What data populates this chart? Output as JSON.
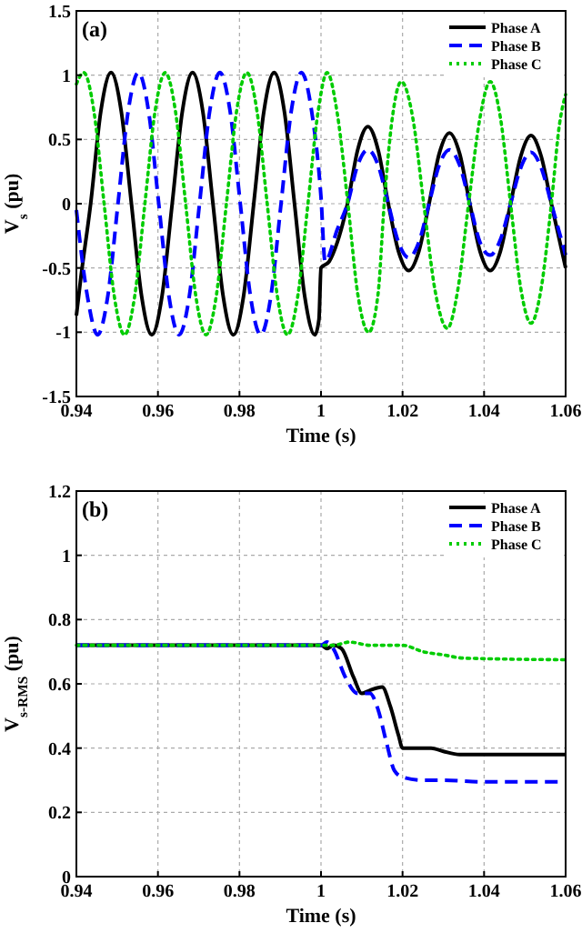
{
  "chart_data": [
    {
      "type": "line",
      "xlabel": "Time (s)",
      "ylabel": "V$_{s}$ (pu)",
      "annotations": [
        "(a)"
      ],
      "xlim": [
        0.94,
        1.06
      ],
      "ylim": [
        -1.5,
        1.5
      ],
      "xticks": [
        0.94,
        0.96,
        0.98,
        1,
        1.02,
        1.04,
        1.06
      ],
      "yticks": [
        -1.5,
        -1,
        -0.5,
        0,
        0.5,
        1,
        1.5
      ],
      "grid": true,
      "legend": "top right",
      "series": [
        {
          "name": "Phase A",
          "color": "#000000",
          "line_style": "solid",
          "x": [
            0.94,
            0.941,
            0.9435,
            0.946,
            0.9485,
            0.951,
            0.9535,
            0.956,
            0.9585,
            0.961,
            0.9635,
            0.966,
            0.9685,
            0.971,
            0.9735,
            0.976,
            0.9785,
            0.981,
            0.9835,
            0.986,
            0.9885,
            0.991,
            0.9935,
            0.996,
            0.9985,
            0.9995,
            1.0,
            1.002,
            1.004,
            1.0065,
            1.009,
            1.0115,
            1.014,
            1.0165,
            1.019,
            1.0215,
            1.024,
            1.0265,
            1.029,
            1.0315,
            1.034,
            1.0365,
            1.039,
            1.0415,
            1.044,
            1.0465,
            1.049,
            1.0515,
            1.054,
            1.0565,
            1.06
          ],
          "values": [
            -0.87,
            -0.6,
            0,
            0.72,
            1.02,
            0.72,
            0,
            -0.72,
            -1.02,
            -0.72,
            0,
            0.72,
            1.02,
            0.72,
            0,
            -0.72,
            -1.02,
            -0.72,
            0,
            0.72,
            1.02,
            0.72,
            0,
            -0.72,
            -1.02,
            -0.9,
            -0.5,
            -0.45,
            -0.3,
            0,
            0.42,
            0.6,
            0.42,
            0,
            -0.37,
            -0.52,
            -0.37,
            0,
            0.39,
            0.55,
            0.39,
            0,
            -0.37,
            -0.52,
            -0.37,
            0,
            0.37,
            0.53,
            0.37,
            0,
            -0.5
          ]
        },
        {
          "name": "Phase B",
          "color": "#0000ff",
          "line_style": "dashed",
          "x": [
            0.94,
            0.9427,
            0.9452,
            0.9477,
            0.9502,
            0.9527,
            0.9552,
            0.9577,
            0.9602,
            0.9627,
            0.9652,
            0.9677,
            0.9702,
            0.9727,
            0.9752,
            0.9777,
            0.9802,
            0.9827,
            0.9852,
            0.9877,
            0.9902,
            0.9927,
            0.9952,
            0.9977,
            1.0,
            1.001,
            1.004,
            1.0065,
            1.009,
            1.0115,
            1.014,
            1.0165,
            1.019,
            1.0215,
            1.024,
            1.0265,
            1.029,
            1.0315,
            1.034,
            1.0365,
            1.039,
            1.0415,
            1.044,
            1.0465,
            1.049,
            1.0515,
            1.054,
            1.0565,
            1.06
          ],
          "values": [
            -0.05,
            -0.72,
            -1.02,
            -0.72,
            0,
            0.72,
            1.02,
            0.72,
            0,
            -0.72,
            -1.02,
            -0.72,
            0,
            0.72,
            1.02,
            0.72,
            0,
            -0.72,
            -1.02,
            -0.72,
            0,
            0.72,
            1.02,
            0.72,
            0.05,
            -0.45,
            -0.2,
            0,
            0.3,
            0.42,
            0.3,
            0,
            -0.3,
            -0.42,
            -0.3,
            0,
            0.3,
            0.42,
            0.3,
            0,
            -0.3,
            -0.4,
            -0.28,
            0,
            0.28,
            0.4,
            0.28,
            0,
            -0.4
          ]
        },
        {
          "name": "Phase C",
          "color": "#00cc00",
          "line_style": "dotted",
          "x": [
            0.94,
            0.9418,
            0.9443,
            0.9468,
            0.9493,
            0.9518,
            0.9543,
            0.9568,
            0.9593,
            0.9618,
            0.9643,
            0.9668,
            0.9693,
            0.9718,
            0.9743,
            0.9768,
            0.9793,
            0.9818,
            0.9843,
            0.9868,
            0.9893,
            0.9918,
            0.9943,
            0.9968,
            0.9993,
            1.0015,
            1.004,
            1.0066,
            1.009,
            1.0117,
            1.014,
            1.0155,
            1.0175,
            1.0197,
            1.0225,
            1.0252,
            1.028,
            1.031,
            1.0335,
            1.0362,
            1.039,
            1.0415,
            1.044,
            1.0465,
            1.049,
            1.0515,
            1.054,
            1.0565,
            1.0585,
            1.06
          ],
          "values": [
            0.93,
            1.02,
            0.72,
            0,
            -0.72,
            -1.02,
            -0.72,
            0,
            0.72,
            1.02,
            0.72,
            0,
            -0.72,
            -1.02,
            -0.72,
            0,
            0.72,
            1.02,
            0.72,
            0,
            -0.72,
            -1.02,
            -0.72,
            0,
            0.72,
            1.02,
            0.7,
            0,
            -0.7,
            -1.0,
            -0.7,
            0,
            0.67,
            0.95,
            0.67,
            0,
            -0.68,
            -0.97,
            -0.68,
            0,
            0.67,
            0.95,
            0.67,
            0,
            -0.66,
            -0.93,
            -0.66,
            0,
            0.62,
            0.85
          ]
        }
      ]
    },
    {
      "type": "line",
      "xlabel": "Time (s)",
      "ylabel": "V$_{s-RMS}$ (pu)",
      "annotations": [
        "(b)"
      ],
      "xlim": [
        0.94,
        1.06
      ],
      "ylim": [
        0,
        1.2
      ],
      "xticks": [
        0.94,
        0.96,
        0.98,
        1,
        1.02,
        1.04,
        1.06
      ],
      "yticks": [
        0,
        0.2,
        0.4,
        0.6,
        0.8,
        1,
        1.2
      ],
      "grid": true,
      "legend": "top right",
      "series": [
        {
          "name": "Phase A",
          "color": "#000000",
          "line_style": "solid",
          "x": [
            0.94,
            1.0,
            1.0015,
            1.003,
            1.005,
            1.008,
            1.01,
            1.012,
            1.015,
            1.017,
            1.019,
            1.02,
            1.027,
            1.03,
            1.034,
            1.06
          ],
          "values": [
            0.72,
            0.72,
            0.71,
            0.72,
            0.71,
            0.62,
            0.57,
            0.58,
            0.59,
            0.53,
            0.44,
            0.4,
            0.4,
            0.39,
            0.38,
            0.38
          ]
        },
        {
          "name": "Phase B",
          "color": "#0000ff",
          "line_style": "dashed",
          "x": [
            0.94,
            1.0,
            1.0015,
            1.003,
            1.006,
            1.009,
            1.012,
            1.014,
            1.016,
            1.018,
            1.02,
            1.025,
            1.03,
            1.04,
            1.06
          ],
          "values": [
            0.72,
            0.72,
            0.73,
            0.71,
            0.62,
            0.57,
            0.57,
            0.52,
            0.42,
            0.33,
            0.31,
            0.3,
            0.3,
            0.295,
            0.295
          ]
        },
        {
          "name": "Phase C",
          "color": "#00cc00",
          "line_style": "dotted",
          "x": [
            0.94,
            1.003,
            1.007,
            1.012,
            1.02,
            1.025,
            1.03,
            1.035,
            1.06
          ],
          "values": [
            0.72,
            0.72,
            0.73,
            0.72,
            0.72,
            0.7,
            0.69,
            0.68,
            0.675
          ]
        }
      ]
    }
  ]
}
